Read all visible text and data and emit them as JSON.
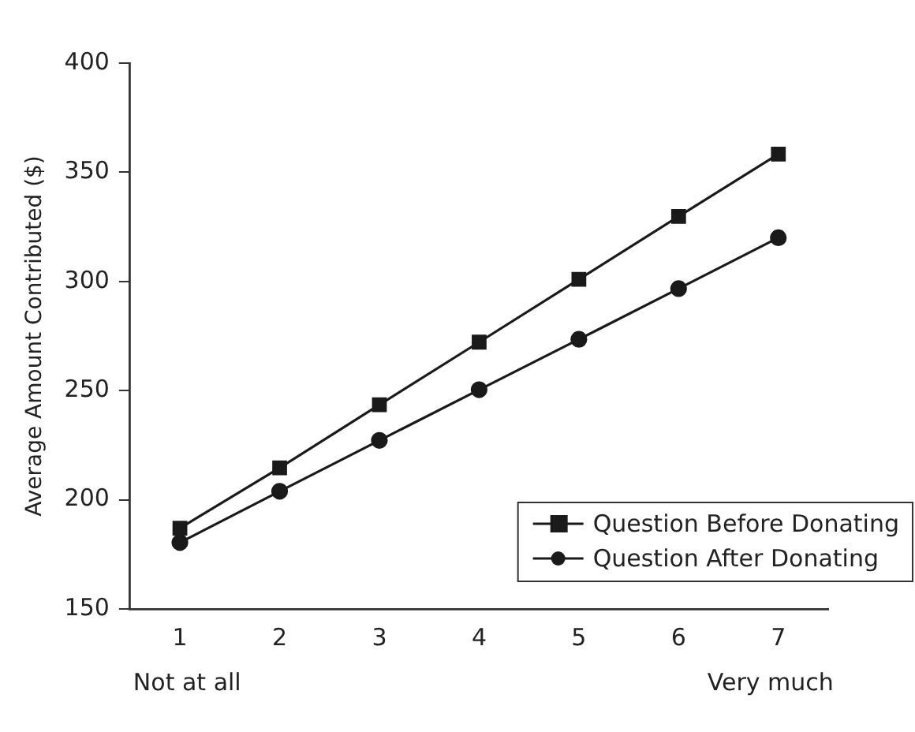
{
  "chart_data": {
    "type": "line",
    "ylabel": "Average Amount Contributed ($)",
    "categories": [
      "1",
      "2",
      "3",
      "4",
      "5",
      "6",
      "7"
    ],
    "series": [
      {
        "name": "Question Before Donating",
        "color": "#1a1a1a",
        "marker": "square",
        "values": [
          187,
          214.6,
          243.5,
          272.2,
          301,
          329.8,
          358.3
        ]
      },
      {
        "name": "Question After Donating",
        "color": "#1a1a1a",
        "marker": "circle",
        "values": [
          180.4,
          203.9,
          227.2,
          250.4,
          273.5,
          296.7,
          320
        ]
      }
    ],
    "ylim": [
      150,
      400
    ],
    "yticks": [
      150,
      200,
      250,
      300,
      350,
      400
    ],
    "grid": false,
    "legend": "bottom right",
    "line_style": "solid",
    "annotations": [
      "Not at all",
      "Very much"
    ]
  }
}
